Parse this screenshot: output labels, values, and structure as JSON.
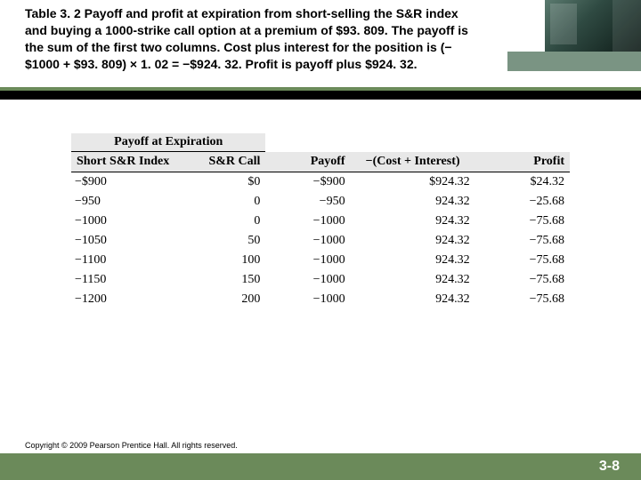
{
  "colors": {
    "accent_green": "#6b8a5a",
    "dark_bar": "#000000",
    "header_bg": "#e8e8e8",
    "text": "#000000",
    "footer_text": "#ffffff",
    "deco_olive": "#7a9483"
  },
  "caption": {
    "label": "Table 3. 2",
    "text": "Payoff and profit at expiration from short-selling the S&R index and buying a 1000-strike call option at a premium of $93. 809. The payoff is the sum of the first two columns. Cost plus interest for the position is (−$1000 + $93. 809) × 1. 02 = −$924. 32. Profit is payoff plus $924. 32."
  },
  "table": {
    "type": "table",
    "super_header": "Payoff at Expiration",
    "columns": [
      "Short S&R Index",
      "S&R Call",
      "Payoff",
      "−(Cost + Interest)",
      "Profit"
    ],
    "col_align": [
      "left",
      "right",
      "right",
      "right",
      "right"
    ],
    "rows": [
      [
        "−$900",
        "$0",
        "−$900",
        "$924.32",
        "$24.32"
      ],
      [
        "−950",
        "0",
        "−950",
        "924.32",
        "−25.68"
      ],
      [
        "−1000",
        "0",
        "−1000",
        "924.32",
        "−75.68"
      ],
      [
        "−1050",
        "50",
        "−1000",
        "924.32",
        "−75.68"
      ],
      [
        "−1100",
        "100",
        "−1000",
        "924.32",
        "−75.68"
      ],
      [
        "−1150",
        "150",
        "−1000",
        "924.32",
        "−75.68"
      ],
      [
        "−1200",
        "200",
        "−1000",
        "924.32",
        "−75.68"
      ]
    ],
    "fontsize": 14,
    "header_fontsize": 14,
    "font_family": "Times New Roman",
    "border_color": "#000000",
    "header_bg": "#e8e8e8"
  },
  "footer": {
    "copyright": "Copyright © 2009 Pearson Prentice Hall. All rights reserved.",
    "page": "3-8"
  }
}
